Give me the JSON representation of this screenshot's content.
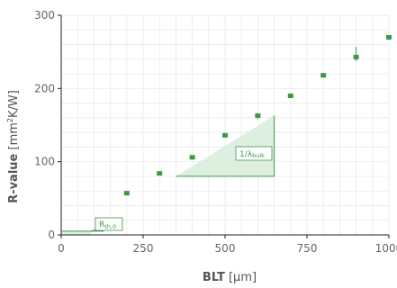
{
  "chart_data": {
    "type": "scatter",
    "xlabel_bold": "BLT",
    "xlabel_unit": "[µm]",
    "ylabel_bold": "R-value",
    "ylabel_unit_pre": "[mm",
    "ylabel_unit_sup": "2",
    "ylabel_unit_post": "K/W]",
    "xlim": [
      0,
      1000
    ],
    "ylim": [
      0,
      300
    ],
    "xticks": [
      0,
      250,
      500,
      750,
      1000
    ],
    "yticks": [
      0,
      100,
      200,
      300
    ],
    "grid": true,
    "series": [
      {
        "x": [
          200,
          300,
          400,
          500,
          600,
          700,
          800,
          900,
          1000
        ],
        "y": [
          57,
          84,
          106,
          136,
          163,
          190,
          218,
          243,
          270
        ],
        "y_low": [
          55,
          82,
          104,
          134,
          158,
          188,
          215,
          237,
          266
        ],
        "y_high": [
          59,
          86,
          108,
          138,
          166,
          192,
          221,
          257,
          273
        ],
        "color": "#3a9a46"
      }
    ],
    "annotations": {
      "rth0_label": "R",
      "rth0_sub": "th,0",
      "slope_label": "1/λ",
      "slope_sub": "bulk",
      "rth0_value": 5,
      "slope_x_start": 350,
      "slope_x_end": 650,
      "slope_y_start": 80,
      "slope_y_end": 163
    },
    "colors": {
      "accent": "#3a9a46",
      "fill": "#d9eedc",
      "grid": "#e6e6e6",
      "axis": "#222222"
    }
  }
}
